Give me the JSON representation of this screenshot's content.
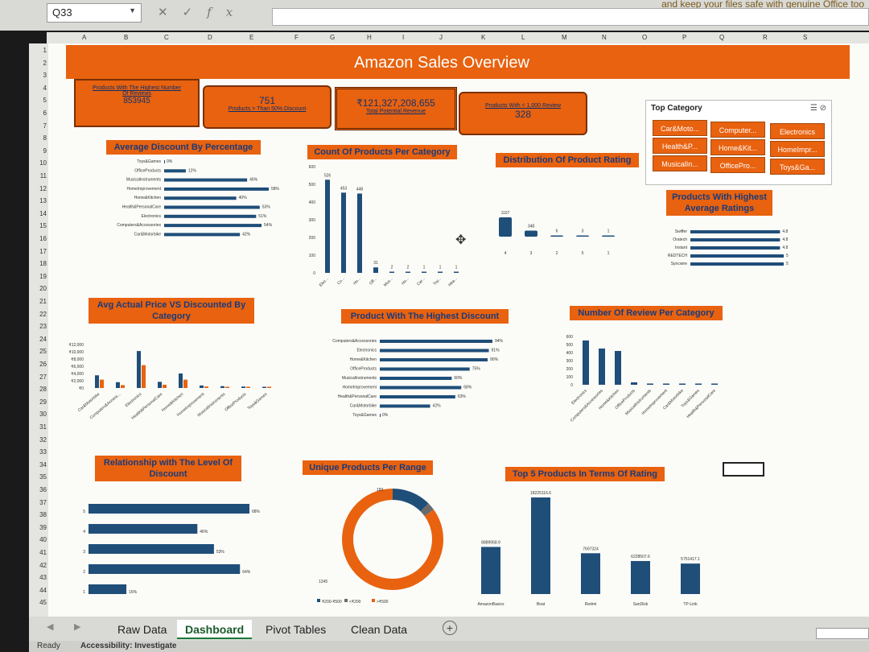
{
  "window": {
    "name_box": "Q33",
    "notice": "and keep your files safe with genuine Office too",
    "formula_icons": [
      "cancel-icon",
      "enter-icon",
      "fx-icon"
    ]
  },
  "columns": [
    "A",
    "B",
    "C",
    "D",
    "E",
    "F",
    "G",
    "H",
    "I",
    "J",
    "K",
    "L",
    "M",
    "N",
    "O",
    "P",
    "Q",
    "R",
    "S"
  ],
  "rows": [
    "1",
    "2",
    "3",
    "4",
    "5",
    "6",
    "7",
    "8",
    "9",
    "10",
    "11",
    "12",
    "13",
    "14",
    "15",
    "16",
    "17",
    "18",
    "19",
    "20",
    "21",
    "22",
    "23",
    "24",
    "25",
    "26",
    "27",
    "28",
    "29",
    "30",
    "31",
    "32",
    "33",
    "34",
    "35",
    "36",
    "37",
    "38",
    "39",
    "40",
    "41",
    "42",
    "43",
    "44",
    "45"
  ],
  "dashboard": {
    "title": "Amazon Sales Overview",
    "kpis": [
      {
        "label": "Products With The Highest Number Of Reviews",
        "value": "853945"
      },
      {
        "value": "751",
        "label": "Products > Than 50% Discount"
      },
      {
        "value": "₹121,327,208,655",
        "label": "Total Potential Revenue"
      },
      {
        "label": "Products With < 1,000 Review",
        "value": "328"
      }
    ],
    "slicer": {
      "title": "Top Category",
      "items": [
        "Car&Moto...",
        "Computer...",
        "Electronics",
        "Health&P...",
        "Home&Kit...",
        "HomeImpr...",
        "MusicalIn...",
        "OfficePro...",
        "Toys&Ga..."
      ]
    }
  },
  "colors": {
    "accent": "#e8620f",
    "bar": "#1f4e79",
    "text_dark": "#1a3a7a"
  },
  "chart_data": [
    {
      "type": "bar",
      "orientation": "horizontal",
      "title": "Average Discount By Percentage",
      "categories": [
        "Toys&Games",
        "OfficeProducts",
        "MusicalInstruments",
        "HomeImprovement",
        "Home&Kitchen",
        "Health&PersonalCare",
        "Electronics",
        "Computers&Accessories",
        "Car&Motorbike"
      ],
      "values": [
        0,
        12,
        46,
        58,
        40,
        53,
        51,
        54,
        42
      ],
      "labels": [
        "0%",
        "12%",
        "46%",
        "58%",
        "40%",
        "53%",
        "51%",
        "54%",
        "42%"
      ]
    },
    {
      "type": "bar",
      "title": "Count Of Products Per Category",
      "categories": [
        "Elec...",
        "Co...",
        "Ho...",
        "Off...",
        "Mus...",
        "Ho...",
        "Car...",
        "Toy...",
        "Hea..."
      ],
      "values": [
        526,
        453,
        448,
        31,
        2,
        2,
        1,
        1,
        1
      ],
      "ylim": [
        0,
        600
      ],
      "yticks": [
        "0",
        "100",
        "200",
        "300",
        "400",
        "500",
        "600"
      ]
    },
    {
      "type": "bar",
      "title": "Distribution Of Product Rating",
      "categories": [
        "4",
        "3",
        "2",
        "5",
        "1"
      ],
      "values": [
        1107,
        348,
        6,
        3,
        1
      ]
    },
    {
      "type": "bar",
      "orientation": "horizontal",
      "title": "Products With Highest Average Ratings",
      "categories": [
        "Swiffer",
        "Oratech",
        "Instant",
        "REDTECH",
        "Syncwire"
      ],
      "values": [
        4.8,
        4.8,
        4.8,
        5,
        5
      ],
      "labels": [
        "4.8",
        "4.8",
        "4.8",
        "5",
        "5"
      ]
    },
    {
      "type": "bar",
      "title": "Avg Actual Price VS Discounted By Category",
      "categories": [
        "Car&Motorbike",
        "Computers&Access...",
        "Electronics",
        "Health&PersonalCare",
        "Home&Kitchen",
        "HomeImprovement",
        "MusicalInstruments",
        "OfficeProducts",
        "Toys&Games"
      ],
      "series": [
        {
          "values": [
            3500,
            1600,
            10200,
            1700,
            4000,
            700,
            500,
            400,
            150
          ]
        },
        {
          "values": [
            2300,
            800,
            6300,
            900,
            2300,
            400,
            300,
            300,
            150
          ]
        }
      ],
      "ylim": [
        0,
        12000
      ],
      "yticks": [
        "₹0",
        "₹2,000",
        "₹4,000",
        "₹6,000",
        "₹8,000",
        "₹10,000",
        "₹12,000"
      ]
    },
    {
      "type": "bar",
      "orientation": "horizontal",
      "title": "Product With The Highest Discount",
      "categories": [
        "Computers&Accessories",
        "Electronics",
        "Home&Kitchen",
        "OfficeProducts",
        "MusicalInstruments",
        "HomeImprovement",
        "Health&PersonalCare",
        "Car&Motorbike",
        "Toys&Games"
      ],
      "values": [
        94,
        91,
        90,
        75,
        60,
        68,
        63,
        42,
        0
      ],
      "labels": [
        "94%",
        "91%",
        "90%",
        "75%",
        "60%",
        "68%",
        "63%",
        "42%",
        "0%"
      ]
    },
    {
      "type": "bar",
      "title": "Number Of Review Per Category",
      "categories": [
        "Electronics",
        "Computers&Accessories",
        "Home&Kitchen",
        "OfficeProducts",
        "MusicalInstruments",
        "HomeImprovement",
        "Car&Motorbike",
        "Toys&Games",
        "Health&PersonalCare"
      ],
      "values": [
        550,
        450,
        420,
        30,
        5,
        3,
        2,
        1,
        1
      ],
      "ylim": [
        0,
        600
      ],
      "yticks": [
        "0",
        "100",
        "200",
        "300",
        "400",
        "500",
        "600"
      ]
    },
    {
      "type": "bar",
      "orientation": "horizontal",
      "title": "Relationship with The Level Of Discount",
      "categories": [
        "5",
        "4",
        "3",
        "2",
        "1"
      ],
      "values": [
        68,
        46,
        53,
        64,
        16
      ],
      "labels": [
        "68%",
        "46%",
        "53%",
        "64%",
        "16%"
      ]
    },
    {
      "type": "pie",
      "title": "Unique Products Per Range",
      "categories": [
        "₹200-₹500",
        "<₹200",
        ">₹500"
      ],
      "values": [
        183,
        37,
        1245
      ],
      "labels": [
        "183",
        "",
        "1245"
      ]
    },
    {
      "type": "bar",
      "title": "Top 5 Products In Terms Of Rating",
      "categories": [
        "AmazonBasics",
        "Boat",
        "Redmi",
        "SanDisk",
        "TP-Link"
      ],
      "values": [
        8889958.9,
        18225116.6,
        7697324,
        6228507.6,
        5751417.1
      ],
      "labels": [
        "8889958.9",
        "18225116.6",
        "7697324",
        "6228507.6",
        "5751417.1"
      ]
    }
  ],
  "sheet_tabs": [
    "Raw Data",
    "Dashboard",
    "Pivot Tables",
    "Clean Data"
  ],
  "active_tab": "Dashboard",
  "status": {
    "ready": "Ready",
    "accessibility": "Accessibility: Investigate"
  }
}
